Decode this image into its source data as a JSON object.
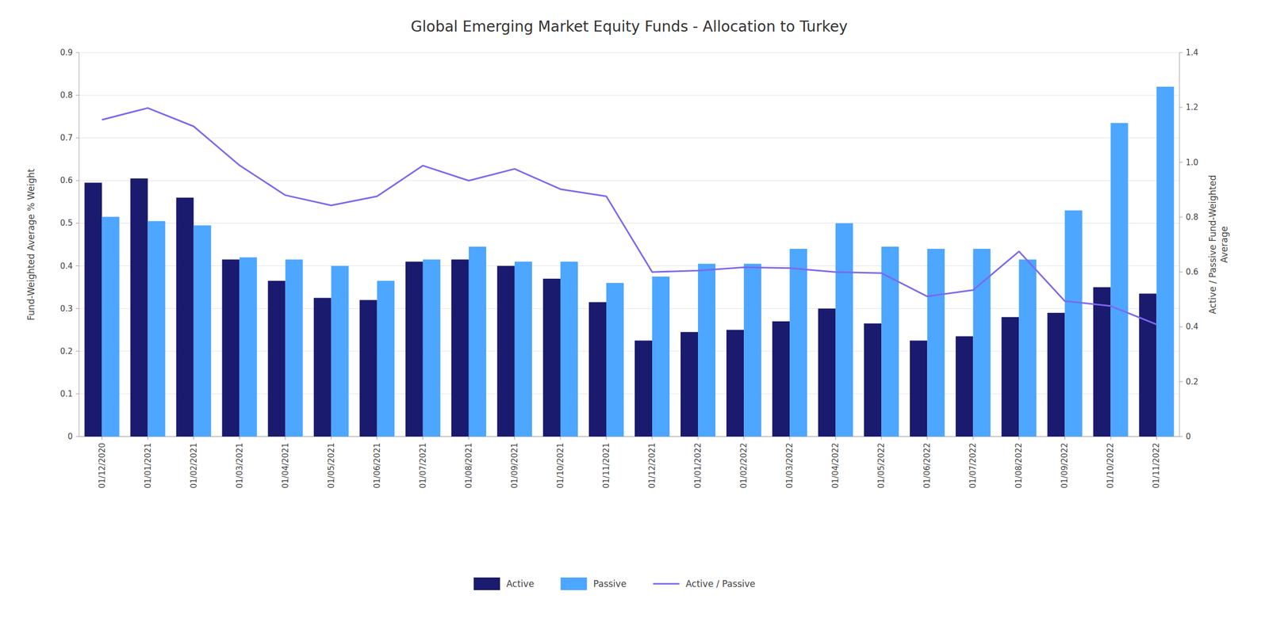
{
  "chart_data": {
    "type": "bar",
    "title": "Global Emerging Market Equity Funds - Allocation to Turkey",
    "categories": [
      "01/12/2020",
      "01/01/2021",
      "01/02/2021",
      "01/03/2021",
      "01/04/2021",
      "01/05/2021",
      "01/06/2021",
      "01/07/2021",
      "01/08/2021",
      "01/09/2021",
      "01/10/2021",
      "01/11/2021",
      "01/12/2021",
      "01/01/2022",
      "01/02/2022",
      "01/03/2022",
      "01/04/2022",
      "01/05/2022",
      "01/06/2022",
      "01/07/2022",
      "01/08/2022",
      "01/09/2022",
      "01/10/2022",
      "01/11/2022"
    ],
    "series": [
      {
        "name": "Active",
        "color": "#1a1a6e",
        "values": [
          0.595,
          0.605,
          0.56,
          0.415,
          0.365,
          0.325,
          0.32,
          0.41,
          0.415,
          0.4,
          0.37,
          0.315,
          0.225,
          0.245,
          0.25,
          0.27,
          0.3,
          0.265,
          0.225,
          0.235,
          0.28,
          0.29,
          0.35,
          0.335
        ]
      },
      {
        "name": "Passive",
        "color": "#4da6ff",
        "values": [
          0.515,
          0.505,
          0.495,
          0.42,
          0.415,
          0.4,
          0.365,
          0.415,
          0.445,
          0.41,
          0.41,
          0.36,
          0.375,
          0.405,
          0.405,
          0.44,
          0.5,
          0.445,
          0.44,
          0.44,
          0.415,
          0.53,
          0.735,
          0.82
        ]
      },
      {
        "name": "Active / Passive",
        "type": "line",
        "axis": "y2",
        "color": "#7b68ee",
        "values": [
          1.155,
          1.198,
          1.131,
          0.989,
          0.88,
          0.843,
          0.876,
          0.988,
          0.933,
          0.976,
          0.902,
          0.876,
          0.6,
          0.605,
          0.617,
          0.614,
          0.6,
          0.596,
          0.511,
          0.534,
          0.675,
          0.494,
          0.476,
          0.409
        ]
      }
    ],
    "ylabel": "Fund-Weighted Average % Weight",
    "y2label": "Active / Passive Fund-Weighted\nAverage",
    "ylim": [
      0,
      0.9
    ],
    "yticks": [
      0,
      0.1,
      0.2,
      0.3,
      0.4,
      0.5,
      0.6,
      0.7,
      0.8,
      0.9
    ],
    "y2lim": [
      0,
      1.4
    ],
    "y2ticks": [
      0,
      0.2,
      0.4,
      0.6,
      0.8,
      {
        "value": 1.0,
        "label": "1.0"
      },
      1.2,
      1.4
    ],
    "grid": true,
    "legend": "bottom"
  }
}
